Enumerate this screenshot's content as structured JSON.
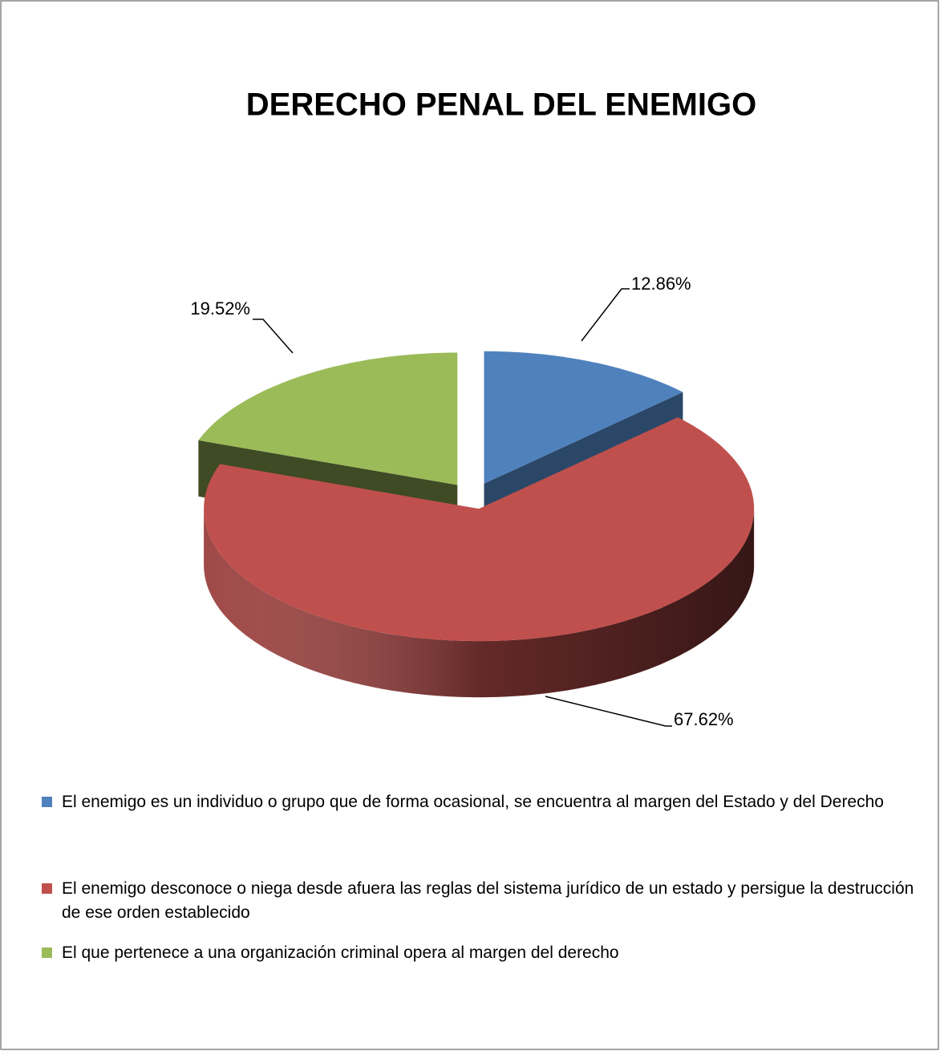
{
  "chart_data": {
    "type": "pie3d",
    "title": "DERECHO PENAL DEL ENEMIGO",
    "categories": [
      "El enemigo es un individuo o grupo que de forma ocasional, se encuentra al margen del Estado y del Derecho",
      "El enemigo desconoce o niega desde afuera las reglas del sistema jurídico de un estado y persigue la destrucción de ese orden establecido",
      "El que pertenece a una organización criminal opera al margen del derecho"
    ],
    "values": [
      12.86,
      67.62,
      19.52
    ],
    "value_labels": [
      "12.86%",
      "67.62%",
      "19.52%"
    ],
    "colors": [
      "#4f81bd",
      "#c0504d",
      "#9bbb59"
    ],
    "legend": "bottom"
  }
}
